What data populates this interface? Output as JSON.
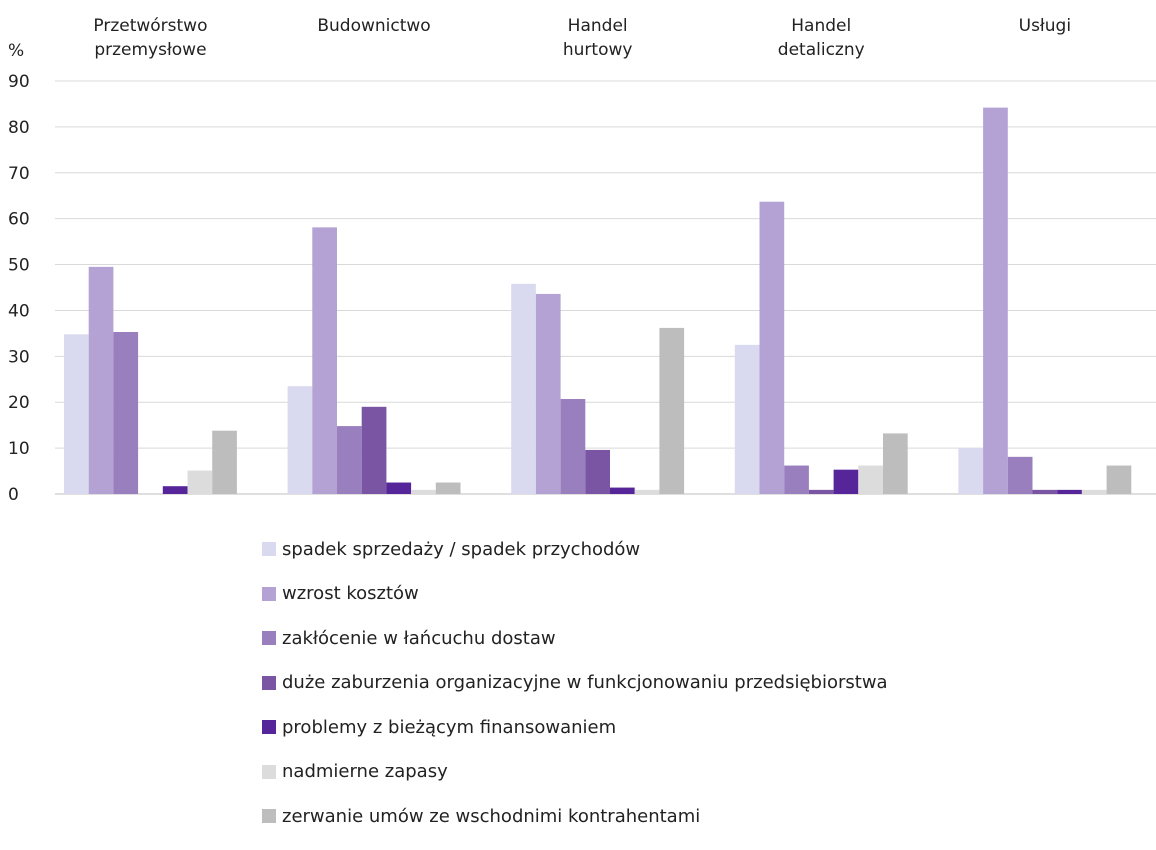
{
  "chart_data": {
    "type": "bar",
    "ylabel": "%",
    "ylim": [
      0,
      90
    ],
    "yticks": [
      0,
      10,
      20,
      30,
      40,
      50,
      60,
      70,
      80,
      90
    ],
    "grid": true,
    "legend_position": "bottom",
    "categories": [
      [
        "Przetwórstwo",
        "przemysłowe"
      ],
      [
        "Budownictwo"
      ],
      [
        "Handel",
        "hurtowy"
      ],
      [
        "Handel",
        "detaliczny"
      ],
      [
        "Usługi"
      ]
    ],
    "series": [
      {
        "name": "spadek sprzedaży / spadek przychodów",
        "color": "#d9daf0",
        "values": [
          34.8,
          23.5,
          45.8,
          32.5,
          10.0
        ]
      },
      {
        "name": "wzrost kosztów",
        "color": "#b3a2d3",
        "values": [
          49.5,
          58.1,
          43.6,
          63.7,
          84.2
        ]
      },
      {
        "name": "zakłócenie w łańcuchu dostaw",
        "color": "#9a7fbe",
        "values": [
          35.3,
          14.8,
          20.7,
          6.2,
          8.1
        ]
      },
      {
        "name": "duże zaburzenia organizacyjne w funkcjonowaniu przedsiębiorstwa",
        "color": "#7a55a3",
        "values": [
          0,
          19.0,
          9.6,
          0.9,
          0.9
        ]
      },
      {
        "name": "problemy z bieżącym finansowaniem",
        "color": "#57259a",
        "values": [
          1.7,
          2.5,
          1.4,
          5.3,
          0.9
        ]
      },
      {
        "name": "nadmierne zapasy",
        "color": "#dcdcdc",
        "values": [
          5.1,
          0.9,
          0.9,
          6.2,
          0.9
        ]
      },
      {
        "name": "zerwanie umów ze wschodnimi kontrahentami",
        "color": "#bdbdbd",
        "values": [
          13.8,
          2.5,
          36.2,
          13.2,
          6.2
        ]
      }
    ]
  }
}
